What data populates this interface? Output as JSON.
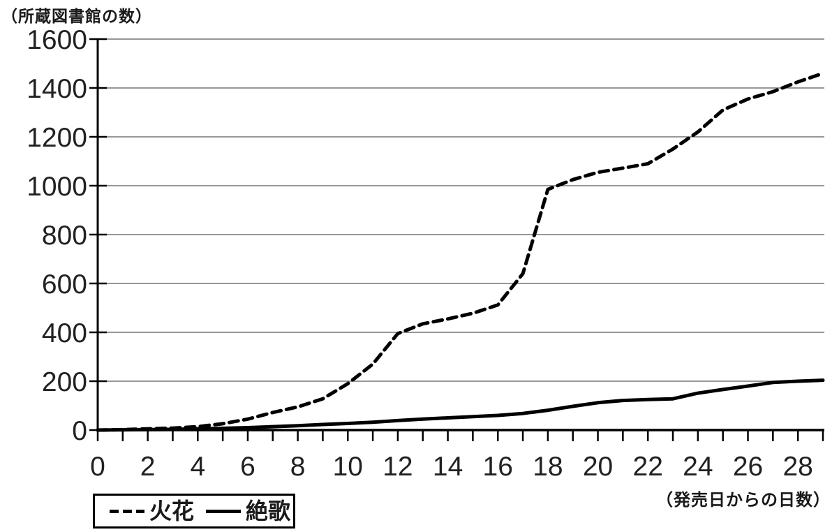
{
  "chart_data": {
    "type": "line",
    "title": "",
    "ylabel": "（所蔵図書館の数）",
    "xlabel": "（発売日からの日数）",
    "x": [
      0,
      1,
      2,
      3,
      4,
      5,
      6,
      7,
      8,
      9,
      10,
      11,
      12,
      13,
      14,
      15,
      16,
      17,
      18,
      19,
      20,
      21,
      22,
      23,
      24,
      25,
      26,
      27,
      28,
      29
    ],
    "x_labels": [
      0,
      2,
      4,
      6,
      8,
      10,
      12,
      14,
      16,
      18,
      20,
      22,
      24,
      26,
      28
    ],
    "y_ticks": [
      0,
      200,
      400,
      600,
      800,
      1000,
      1200,
      1400,
      1600
    ],
    "ylim": [
      0,
      1600
    ],
    "xlim": [
      0,
      29
    ],
    "grid": true,
    "legend_position": "bottom-left",
    "series": [
      {
        "name": "火花",
        "style": "dashed",
        "values": [
          0,
          2,
          5,
          8,
          14,
          26,
          45,
          72,
          95,
          128,
          190,
          270,
          395,
          435,
          455,
          478,
          512,
          640,
          985,
          1025,
          1055,
          1072,
          1090,
          1150,
          1220,
          1310,
          1355,
          1385,
          1425,
          1460
        ]
      },
      {
        "name": "絶歌",
        "style": "solid",
        "values": [
          0,
          1,
          2,
          3,
          5,
          7,
          10,
          14,
          18,
          23,
          27,
          32,
          39,
          45,
          50,
          55,
          60,
          68,
          81,
          97,
          112,
          121,
          125,
          128,
          151,
          166,
          180,
          195,
          200,
          204
        ]
      }
    ],
    "colors": {
      "line": "#000000",
      "grid": "#595959",
      "axis": "#000000"
    }
  }
}
